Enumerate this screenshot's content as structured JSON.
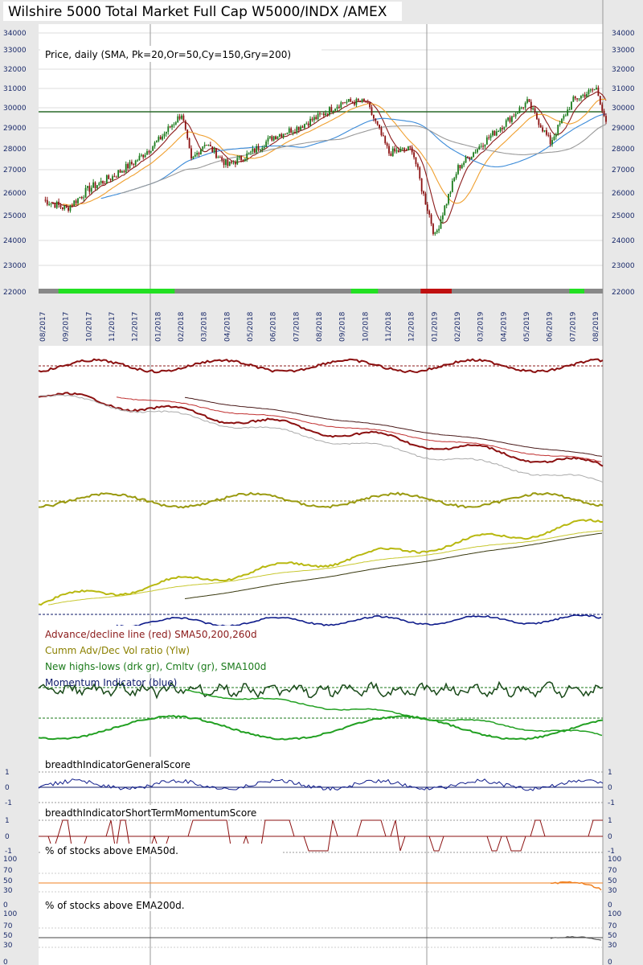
{
  "title": "Wilshire 5000 Total Market Full Cap W5000/INDX /AMEX",
  "chart_data": {
    "type": "line",
    "price_panel": {
      "label": "Price, daily (SMA, Pk=20,Or=50,Cy=150,Gry=200)",
      "y_ticks": [
        22000,
        23000,
        24000,
        25000,
        26000,
        27000,
        28000,
        29000,
        30000,
        31000,
        32000,
        33000,
        34000
      ],
      "ylim": [
        22000,
        34500
      ],
      "horizontal_level": 29800,
      "x_dates": [
        "08/2017",
        "09/2017",
        "10/2017",
        "11/2017",
        "12/2017",
        "01/2018",
        "02/2018",
        "03/2018",
        "04/2018",
        "05/2018",
        "06/2018",
        "07/2018",
        "08/2018",
        "09/2018",
        "10/2018",
        "11/2018",
        "12/2018",
        "01/2019",
        "02/2019",
        "03/2019",
        "04/2019",
        "05/2019",
        "06/2019",
        "07/2019",
        "08/2019"
      ],
      "close_keypoints": [
        [
          "08/2017",
          25700
        ],
        [
          "09/2017",
          25300
        ],
        [
          "10/2017",
          26200
        ],
        [
          "11/2017",
          26700
        ],
        [
          "12/2017",
          27400
        ],
        [
          "01/2018",
          28400
        ],
        [
          "02/2018",
          29700
        ],
        [
          "02/2018",
          27400
        ],
        [
          "03/2018",
          28300
        ],
        [
          "04/2018",
          27200
        ],
        [
          "05/2018",
          27800
        ],
        [
          "06/2018",
          28600
        ],
        [
          "07/2018",
          29000
        ],
        [
          "08/2018",
          29600
        ],
        [
          "09/2018",
          30300
        ],
        [
          "10/2018",
          30300
        ],
        [
          "11/2018",
          27800
        ],
        [
          "12/2018",
          28000
        ],
        [
          "12/2018",
          26200
        ],
        [
          "01/2019",
          24150
        ],
        [
          "02/2019",
          27100
        ],
        [
          "03/2019",
          28200
        ],
        [
          "04/2019",
          29200
        ],
        [
          "05/2019",
          30300
        ],
        [
          "06/2019",
          28300
        ],
        [
          "07/2019",
          30400
        ],
        [
          "08/2019",
          31000
        ],
        [
          "08/2019",
          29300
        ]
      ],
      "series": [
        {
          "name": "SMA 20",
          "color": "#8b1a1a"
        },
        {
          "name": "SMA 50",
          "color": "#f0a030"
        },
        {
          "name": "SMA 150",
          "color": "#3a8ad8"
        },
        {
          "name": "SMA 200",
          "color": "#999999"
        }
      ]
    },
    "breadth_panels": {
      "legend": [
        {
          "text": "Advance/decline line (red) SMA50,200,260d",
          "color": "#8b1a1a"
        },
        {
          "text": "Cumm Adv/Dec Vol ratio (Ylw)",
          "color": "#8b8000"
        },
        {
          "text": "New highs-lows (drk gr), Cmltv (gr), SMA100d",
          "color": "#1a7a1a"
        },
        {
          "text": "Momentum Indicator (blue)",
          "color": "#0d1a6a"
        }
      ]
    },
    "score_general": {
      "label": "breadthIndicatorGeneralScore",
      "y_ticks": [
        "1",
        "0",
        "-1"
      ]
    },
    "score_shortterm": {
      "label": "breadthIndicatorShortTermMomentumScore",
      "y_ticks": [
        "1",
        "0",
        "-1"
      ]
    },
    "pct_ema50": {
      "label": "% of stocks above EMA50d.",
      "y_ticks": [
        "100",
        "70",
        "50",
        "30",
        "0"
      ]
    },
    "pct_ema200": {
      "label": "% of stocks above EMA200d.",
      "y_ticks": [
        "100",
        "70",
        "50",
        "30",
        "0"
      ]
    }
  },
  "colors": {
    "up_candle": "#1a7a1a",
    "down_candle": "#8b1010",
    "level_line": "#2a6a2a",
    "regime_green": "#22e022",
    "regime_red": "#c01010",
    "regime_gray": "#888888"
  }
}
